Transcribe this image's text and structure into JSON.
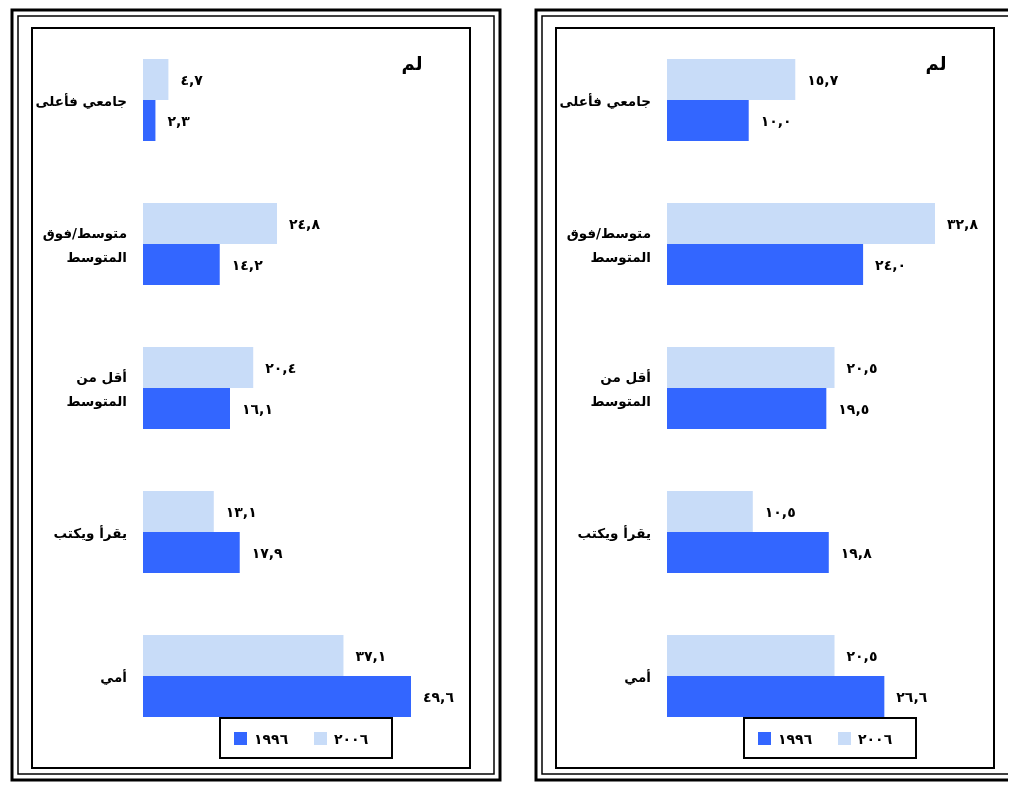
{
  "chart_data": [
    {
      "type": "bar",
      "orientation": "horizontal",
      "title": "لم",
      "categories": [
        "جامعي فأعلى",
        "متوسط/فوق المتوسط",
        "أقل من المتوسط",
        "يقرأ ويكتب",
        "أمي"
      ],
      "legend": "bottom",
      "series": [
        {
          "name": "٢٠٠٦",
          "color": "#c8dcf8",
          "values": [
            4.7,
            24.8,
            20.4,
            13.1,
            37.1
          ],
          "value_labels": [
            "٤,٧",
            "٢٤,٨",
            "٢٠,٤",
            "١٣,١",
            "٣٧,١"
          ]
        },
        {
          "name": "١٩٩٦",
          "color": "#3366ff",
          "values": [
            2.3,
            14.2,
            16.1,
            17.9,
            49.6
          ],
          "value_labels": [
            "٢,٣",
            "١٤,٢",
            "١٦,١",
            "١٧,٩",
            "٤٩,٦"
          ]
        }
      ]
    },
    {
      "type": "bar",
      "orientation": "horizontal",
      "title": "لم",
      "categories": [
        "جامعي فأعلى",
        "متوسط/فوق المتوسط",
        "أقل من المتوسط",
        "يقرأ ويكتب",
        "أمي"
      ],
      "legend": "bottom",
      "series": [
        {
          "name": "٢٠٠٦",
          "color": "#c8dcf8",
          "values": [
            15.7,
            32.8,
            20.5,
            10.5,
            20.5
          ],
          "value_labels": [
            "١٥,٧",
            "٣٢,٨",
            "٢٠,٥",
            "١٠,٥",
            "٢٠,٥"
          ]
        },
        {
          "name": "١٩٩٦",
          "color": "#3366ff",
          "values": [
            10.0,
            24.0,
            19.5,
            19.8,
            26.6
          ],
          "value_labels": [
            "١٠,٠",
            "٢٤,٠",
            "١٩,٥",
            "١٩,٨",
            "٢٦,٦"
          ]
        }
      ]
    }
  ]
}
